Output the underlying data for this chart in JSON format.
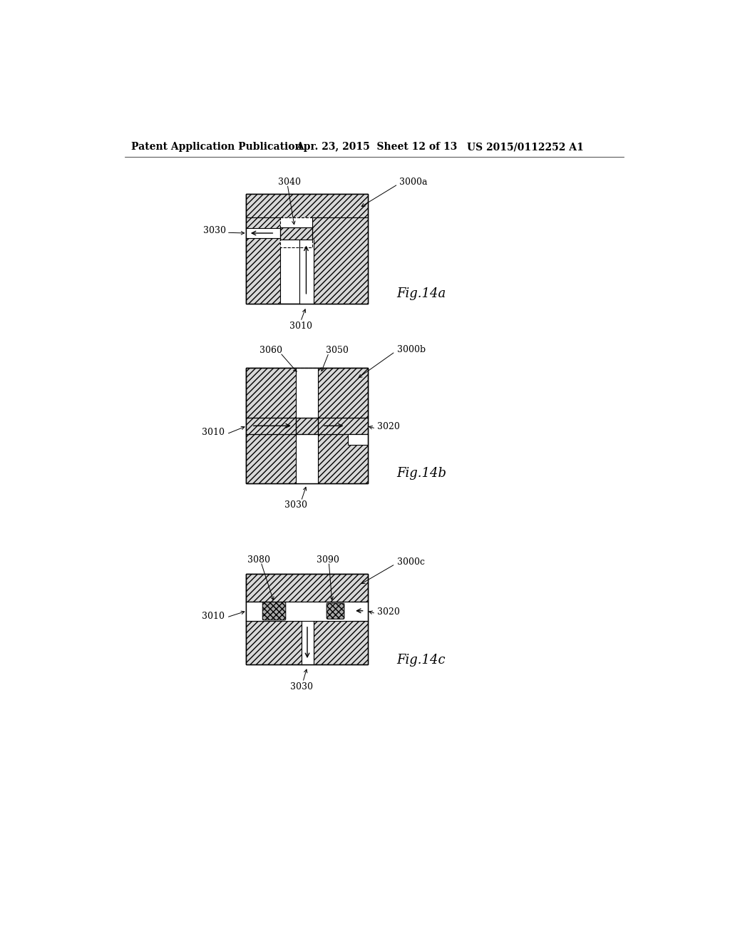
{
  "title_left": "Patent Application Publication",
  "title_mid": "Apr. 23, 2015  Sheet 12 of 13",
  "title_right": "US 2015/0112252 A1",
  "fig_a_label": "Fig.14a",
  "fig_b_label": "Fig.14b",
  "fig_c_label": "Fig.14c",
  "bg_color": "#ffffff",
  "hatch_gray": "#d8d8d8",
  "line_color": "#000000"
}
